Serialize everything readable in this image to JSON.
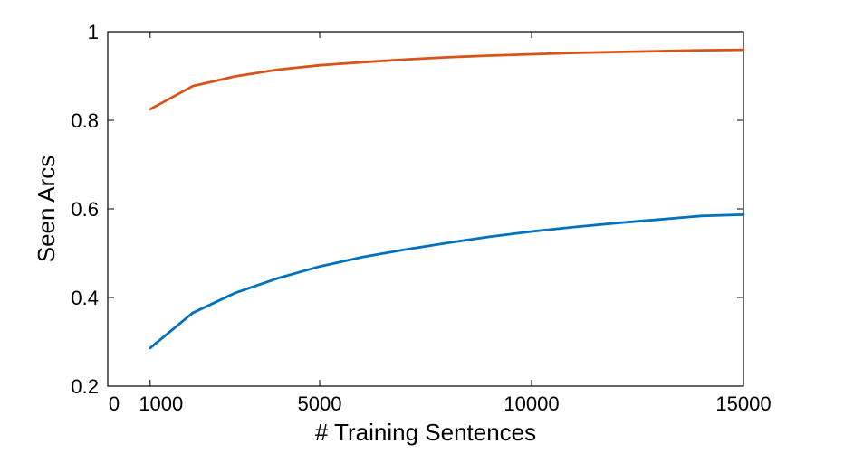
{
  "chart_data": {
    "type": "line",
    "title": "",
    "xlabel": "# Training Sentences",
    "ylabel": "Seen Arcs",
    "xlim": [
      0,
      15000
    ],
    "ylim": [
      0.2,
      1
    ],
    "x_tick_labels": [
      {
        "value": 0,
        "label": "0"
      },
      {
        "value": 1000,
        "label": "1000"
      },
      {
        "value": 5000,
        "label": "5000"
      },
      {
        "value": 10000,
        "label": "10000"
      },
      {
        "value": 15000,
        "label": "15000"
      }
    ],
    "y_tick_labels": [
      {
        "value": 0.2,
        "label": "0.2"
      },
      {
        "value": 0.4,
        "label": "0.4"
      },
      {
        "value": 0.6,
        "label": "0.6"
      },
      {
        "value": 0.8,
        "label": "0.8"
      },
      {
        "value": 1,
        "label": "1"
      }
    ],
    "grid": false,
    "series": [
      {
        "color": "#D95319",
        "x": [
          1000,
          2000,
          3000,
          4000,
          5000,
          6000,
          7000,
          8000,
          9000,
          10000,
          11000,
          12000,
          13000,
          14000,
          15000
        ],
        "values": [
          0.825,
          0.877,
          0.899,
          0.914,
          0.924,
          0.931,
          0.937,
          0.942,
          0.946,
          0.949,
          0.952,
          0.954,
          0.956,
          0.958,
          0.959
        ]
      },
      {
        "color": "#0072BD",
        "x": [
          1000,
          2000,
          3000,
          4000,
          5000,
          6000,
          7000,
          8000,
          9000,
          10000,
          11000,
          12000,
          13000,
          14000,
          15000
        ],
        "values": [
          0.286,
          0.365,
          0.41,
          0.443,
          0.47,
          0.491,
          0.508,
          0.523,
          0.537,
          0.549,
          0.559,
          0.568,
          0.576,
          0.584,
          0.587
        ]
      }
    ]
  }
}
